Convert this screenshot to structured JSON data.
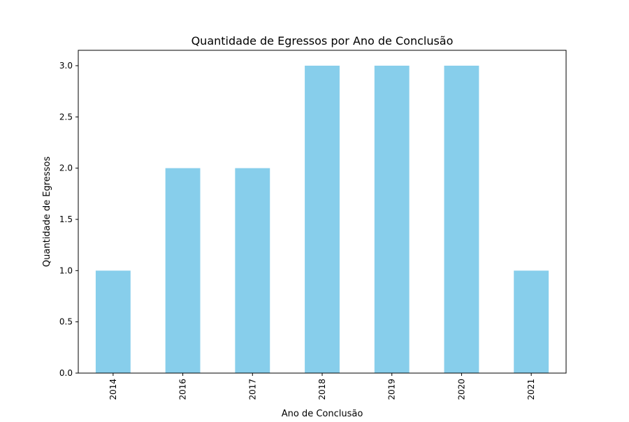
{
  "chart_data": {
    "type": "bar",
    "title": "Quantidade de Egressos por Ano de Conclusão",
    "xlabel": "Ano de Conclusão",
    "ylabel": "Quantidade de Egressos",
    "categories": [
      "2014",
      "2016",
      "2017",
      "2018",
      "2019",
      "2020",
      "2021"
    ],
    "values": [
      1,
      2,
      2,
      3,
      3,
      3,
      1
    ],
    "ylim": [
      0,
      3.15
    ],
    "yticks": [
      "0.0",
      "0.5",
      "1.0",
      "1.5",
      "2.0",
      "2.5",
      "3.0"
    ],
    "bar_color": "#87ceeb",
    "grid": false,
    "legend": null
  }
}
